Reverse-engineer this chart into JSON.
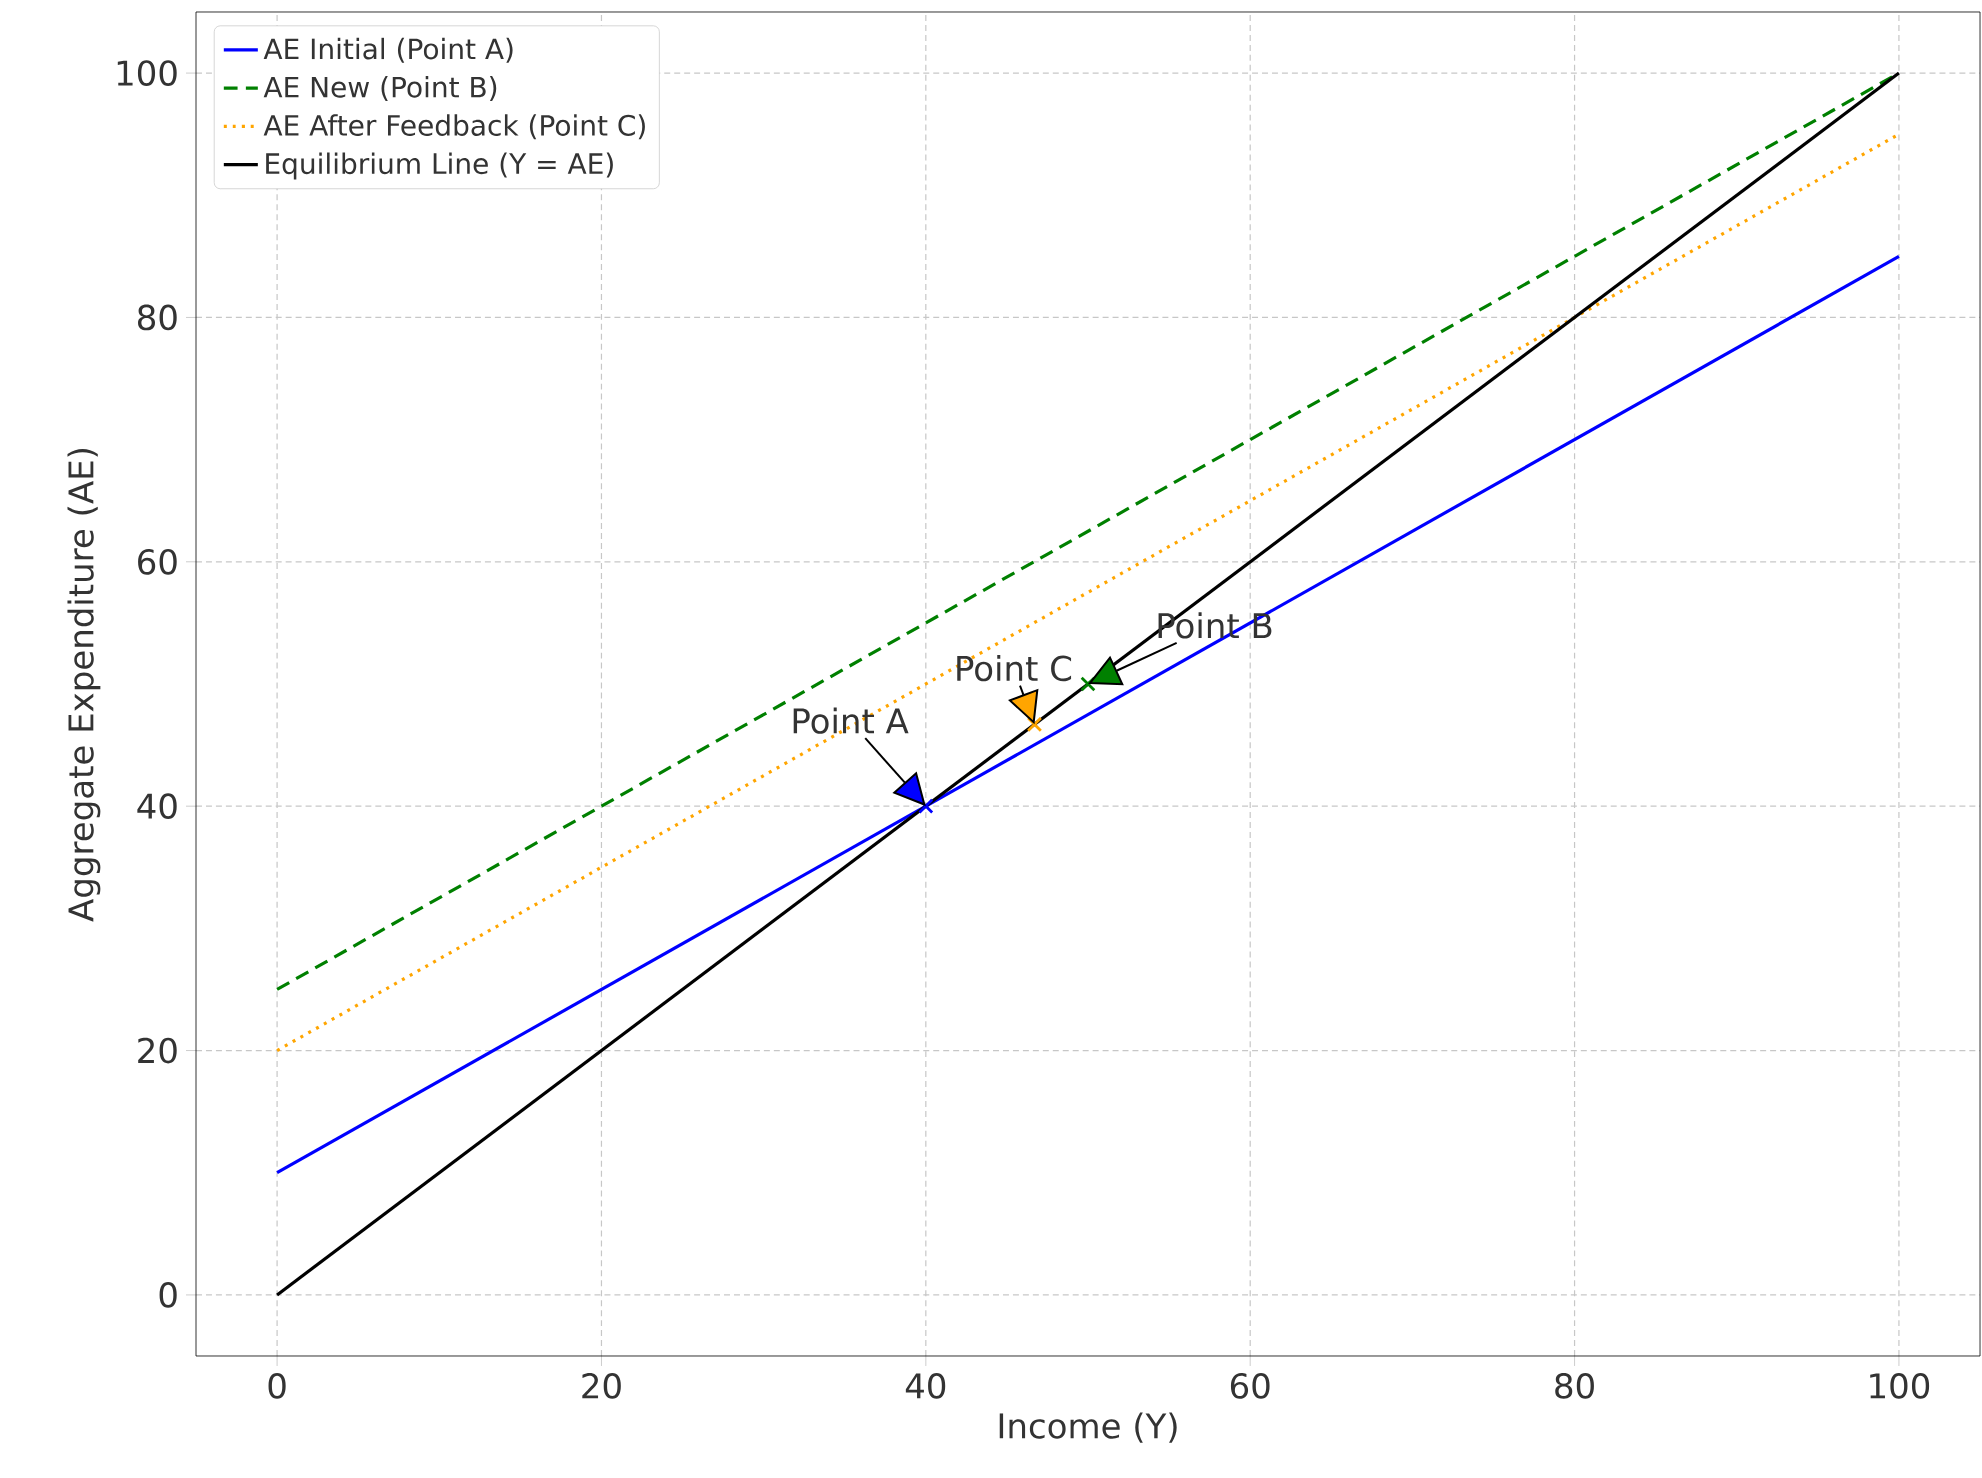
{
  "chart_data": {
    "type": "line",
    "xlabel": "Income (Y)",
    "ylabel": "Aggregate Expenditure (AE)",
    "xlim": [
      -5,
      105
    ],
    "ylim": [
      -5,
      105
    ],
    "xticks": [
      0,
      20,
      40,
      60,
      80,
      100
    ],
    "yticks": [
      0,
      20,
      40,
      60,
      80,
      100
    ],
    "grid": true,
    "legend": "top left",
    "series": [
      {
        "name": "AE Initial (Point A)",
        "color": "#0000ff",
        "x": [
          0,
          100
        ],
        "values": [
          10,
          85
        ],
        "line_style": "solid"
      },
      {
        "name": "AE New (Point B)",
        "color": "#008000",
        "x": [
          0,
          100
        ],
        "values": [
          25,
          100
        ],
        "line_style": "dashed"
      },
      {
        "name": "AE After Feedback (Point C)",
        "color": "#ffa500",
        "x": [
          0,
          100
        ],
        "values": [
          20,
          95
        ],
        "line_style": "dotted"
      },
      {
        "name": "Equilibrium Line (Y = AE)",
        "color": "#000000",
        "x": [
          0,
          100
        ],
        "values": [
          0,
          100
        ],
        "line_style": "solid"
      },
      {
        "type": "scatter",
        "color": "#0000ff",
        "x": [
          40
        ],
        "values": [
          40
        ],
        "marker": "cross"
      },
      {
        "type": "scatter",
        "color": "#008000",
        "x": [
          50
        ],
        "values": [
          50
        ],
        "marker": "cross"
      },
      {
        "type": "scatter",
        "color": "#ffa500",
        "x": [
          46.7
        ],
        "values": [
          46.7
        ],
        "marker": "cross"
      }
    ],
    "annotations": [
      {
        "text": "Point A",
        "x": 40,
        "y": 40
      },
      {
        "text": "Point B",
        "x": 50,
        "y": 50
      },
      {
        "text": "Point C",
        "x": 46.7,
        "y": 46.7
      }
    ]
  }
}
